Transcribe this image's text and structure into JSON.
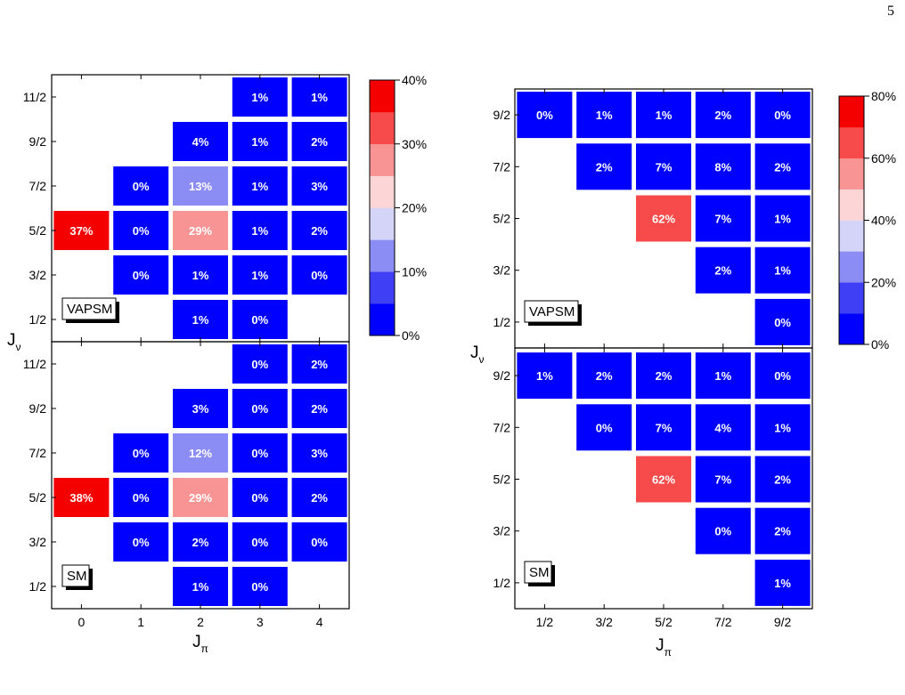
{
  "page": {
    "number": "5"
  },
  "colors": {
    "scale": [
      "#0000ff",
      "#3f3ff5",
      "#8c8cf5",
      "#d4d4f8",
      "#fcd6d6",
      "#f99494",
      "#f74a4a",
      "#f50000"
    ]
  },
  "chart_data": [
    {
      "type": "heatmap",
      "xticks": [
        "0",
        "1",
        "2",
        "3",
        "4"
      ],
      "yticks": [
        "1/2",
        "3/2",
        "5/2",
        "7/2",
        "9/2",
        "11/2"
      ],
      "xlabel": {
        "main": "J",
        "sub": "π"
      },
      "ylabel": {
        "main": "J",
        "sub": "ν"
      },
      "colorbar": {
        "min": 0,
        "max": 40,
        "ticks": [
          "0%",
          "10%",
          "20%",
          "30%",
          "40%"
        ]
      },
      "panels": [
        {
          "label": "VAPSM",
          "cells": [
            {
              "x": 3,
              "y": 5,
              "value": 1,
              "text": "1%"
            },
            {
              "x": 4,
              "y": 5,
              "value": 1,
              "text": "1%"
            },
            {
              "x": 2,
              "y": 4,
              "value": 4,
              "text": "4%"
            },
            {
              "x": 3,
              "y": 4,
              "value": 1,
              "text": "1%"
            },
            {
              "x": 4,
              "y": 4,
              "value": 2,
              "text": "2%"
            },
            {
              "x": 1,
              "y": 3,
              "value": 0,
              "text": "0%"
            },
            {
              "x": 2,
              "y": 3,
              "value": 13,
              "text": "13%"
            },
            {
              "x": 3,
              "y": 3,
              "value": 1,
              "text": "1%"
            },
            {
              "x": 4,
              "y": 3,
              "value": 3,
              "text": "3%"
            },
            {
              "x": 0,
              "y": 2,
              "value": 37,
              "text": "37%"
            },
            {
              "x": 1,
              "y": 2,
              "value": 0,
              "text": "0%"
            },
            {
              "x": 2,
              "y": 2,
              "value": 29,
              "text": "29%"
            },
            {
              "x": 3,
              "y": 2,
              "value": 1,
              "text": "1%"
            },
            {
              "x": 4,
              "y": 2,
              "value": 2,
              "text": "2%"
            },
            {
              "x": 1,
              "y": 1,
              "value": 0,
              "text": "0%"
            },
            {
              "x": 2,
              "y": 1,
              "value": 1,
              "text": "1%"
            },
            {
              "x": 3,
              "y": 1,
              "value": 1,
              "text": "1%"
            },
            {
              "x": 4,
              "y": 1,
              "value": 0,
              "text": "0%"
            },
            {
              "x": 2,
              "y": 0,
              "value": 1,
              "text": "1%"
            },
            {
              "x": 3,
              "y": 0,
              "value": 0,
              "text": "0%"
            }
          ]
        },
        {
          "label": "SM",
          "cells": [
            {
              "x": 3,
              "y": 5,
              "value": 0,
              "text": "0%"
            },
            {
              "x": 4,
              "y": 5,
              "value": 2,
              "text": "2%"
            },
            {
              "x": 2,
              "y": 4,
              "value": 3,
              "text": "3%"
            },
            {
              "x": 3,
              "y": 4,
              "value": 0,
              "text": "0%"
            },
            {
              "x": 4,
              "y": 4,
              "value": 2,
              "text": "2%"
            },
            {
              "x": 1,
              "y": 3,
              "value": 0,
              "text": "0%"
            },
            {
              "x": 2,
              "y": 3,
              "value": 12,
              "text": "12%"
            },
            {
              "x": 3,
              "y": 3,
              "value": 0,
              "text": "0%"
            },
            {
              "x": 4,
              "y": 3,
              "value": 3,
              "text": "3%"
            },
            {
              "x": 0,
              "y": 2,
              "value": 38,
              "text": "38%"
            },
            {
              "x": 1,
              "y": 2,
              "value": 0,
              "text": "0%"
            },
            {
              "x": 2,
              "y": 2,
              "value": 29,
              "text": "29%"
            },
            {
              "x": 3,
              "y": 2,
              "value": 0,
              "text": "0%"
            },
            {
              "x": 4,
              "y": 2,
              "value": 2,
              "text": "2%"
            },
            {
              "x": 1,
              "y": 1,
              "value": 0,
              "text": "0%"
            },
            {
              "x": 2,
              "y": 1,
              "value": 2,
              "text": "2%"
            },
            {
              "x": 3,
              "y": 1,
              "value": 0,
              "text": "0%"
            },
            {
              "x": 4,
              "y": 1,
              "value": 0,
              "text": "0%"
            },
            {
              "x": 2,
              "y": 0,
              "value": 1,
              "text": "1%"
            },
            {
              "x": 3,
              "y": 0,
              "value": 0,
              "text": "0%"
            }
          ]
        }
      ]
    },
    {
      "type": "heatmap",
      "xticks": [
        "1/2",
        "3/2",
        "5/2",
        "7/2",
        "9/2"
      ],
      "yticks": [
        "1/2",
        "3/2",
        "5/2",
        "7/2",
        "9/2"
      ],
      "xlabel": {
        "main": "J",
        "sub": "π"
      },
      "ylabel": {
        "main": "J",
        "sub": "ν"
      },
      "colorbar": {
        "min": 0,
        "max": 80,
        "ticks": [
          "0%",
          "20%",
          "40%",
          "60%",
          "80%"
        ]
      },
      "panels": [
        {
          "label": "VAPSM",
          "cells": [
            {
              "x": 0,
              "y": 4,
              "value": 0,
              "text": "0%"
            },
            {
              "x": 1,
              "y": 4,
              "value": 1,
              "text": "1%"
            },
            {
              "x": 2,
              "y": 4,
              "value": 1,
              "text": "1%"
            },
            {
              "x": 3,
              "y": 4,
              "value": 2,
              "text": "2%"
            },
            {
              "x": 4,
              "y": 4,
              "value": 0,
              "text": "0%"
            },
            {
              "x": 1,
              "y": 3,
              "value": 2,
              "text": "2%"
            },
            {
              "x": 2,
              "y": 3,
              "value": 7,
              "text": "7%"
            },
            {
              "x": 3,
              "y": 3,
              "value": 8,
              "text": "8%"
            },
            {
              "x": 4,
              "y": 3,
              "value": 2,
              "text": "2%"
            },
            {
              "x": 2,
              "y": 2,
              "value": 62,
              "text": "62%"
            },
            {
              "x": 3,
              "y": 2,
              "value": 7,
              "text": "7%"
            },
            {
              "x": 4,
              "y": 2,
              "value": 1,
              "text": "1%"
            },
            {
              "x": 3,
              "y": 1,
              "value": 2,
              "text": "2%"
            },
            {
              "x": 4,
              "y": 1,
              "value": 1,
              "text": "1%"
            },
            {
              "x": 4,
              "y": 0,
              "value": 0,
              "text": "0%"
            }
          ]
        },
        {
          "label": "SM",
          "cells": [
            {
              "x": 0,
              "y": 4,
              "value": 1,
              "text": "1%"
            },
            {
              "x": 1,
              "y": 4,
              "value": 2,
              "text": "2%"
            },
            {
              "x": 2,
              "y": 4,
              "value": 2,
              "text": "2%"
            },
            {
              "x": 3,
              "y": 4,
              "value": 1,
              "text": "1%"
            },
            {
              "x": 4,
              "y": 4,
              "value": 0,
              "text": "0%"
            },
            {
              "x": 1,
              "y": 3,
              "value": 0,
              "text": "0%"
            },
            {
              "x": 2,
              "y": 3,
              "value": 7,
              "text": "7%"
            },
            {
              "x": 3,
              "y": 3,
              "value": 4,
              "text": "4%"
            },
            {
              "x": 4,
              "y": 3,
              "value": 1,
              "text": "1%"
            },
            {
              "x": 2,
              "y": 2,
              "value": 62,
              "text": "62%"
            },
            {
              "x": 3,
              "y": 2,
              "value": 7,
              "text": "7%"
            },
            {
              "x": 4,
              "y": 2,
              "value": 2,
              "text": "2%"
            },
            {
              "x": 3,
              "y": 1,
              "value": 0,
              "text": "0%"
            },
            {
              "x": 4,
              "y": 1,
              "value": 2,
              "text": "2%"
            },
            {
              "x": 4,
              "y": 0,
              "value": 1,
              "text": "1%"
            }
          ]
        }
      ]
    }
  ]
}
